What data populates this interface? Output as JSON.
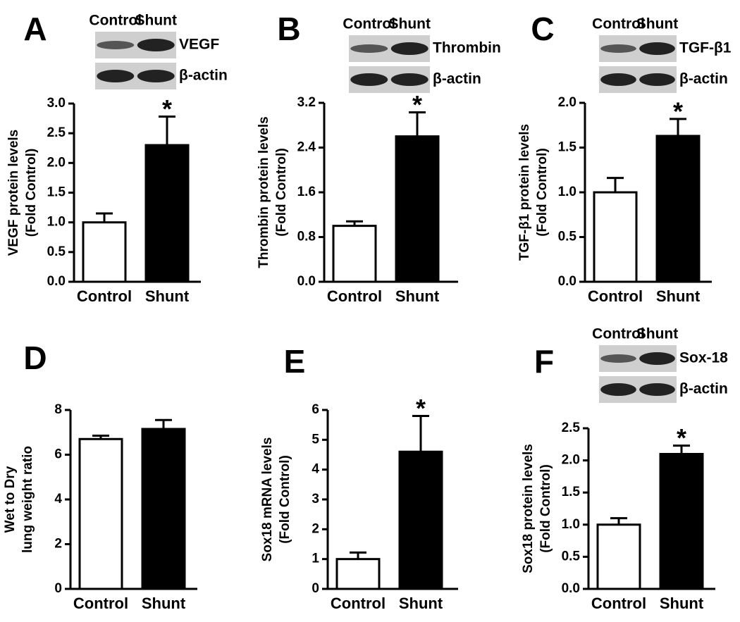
{
  "chart_data": [
    {
      "type": "bar",
      "letter": "A",
      "ylabel": [
        "VEGF protein levels",
        "(Fold Control)"
      ],
      "categories": [
        "Control",
        "Shunt"
      ],
      "values": [
        1.0,
        2.3
      ],
      "errors": [
        0.15,
        0.48
      ],
      "colors": [
        "#ffffff",
        "#000000"
      ],
      "ylim": [
        0,
        3
      ],
      "yticks": [
        {
          "value": 0,
          "label": "0.0"
        },
        0.5,
        {
          "value": 1,
          "label": "1.0"
        },
        1.5,
        {
          "value": 2,
          "label": "2.0"
        },
        2.5,
        {
          "value": 3,
          "label": "3.0"
        }
      ],
      "annotation": "*",
      "blot": {
        "lanes": [
          "Control",
          "Shunt"
        ],
        "rows": [
          "VEGF",
          "β-actin"
        ]
      }
    },
    {
      "type": "bar",
      "letter": "B",
      "ylabel": [
        "Thrombin protein levels",
        "(Fold Control)"
      ],
      "categories": [
        "Control",
        "Shunt"
      ],
      "values": [
        1.0,
        2.6
      ],
      "errors": [
        0.08,
        0.43
      ],
      "colors": [
        "#ffffff",
        "#000000"
      ],
      "ylim": [
        0,
        3.2
      ],
      "yticks": [
        {
          "value": 0,
          "label": "0.0"
        },
        0.8,
        1.6,
        2.4,
        3.2
      ],
      "annotation": "*",
      "blot": {
        "lanes": [
          "Control",
          "Shunt"
        ],
        "rows": [
          "Thrombin",
          "β-actin"
        ]
      }
    },
    {
      "type": "bar",
      "letter": "C",
      "ylabel": [
        "TGF-β1 protein levels",
        "(Fold Control)"
      ],
      "categories": [
        "Control",
        "Shunt"
      ],
      "values": [
        1.0,
        1.63
      ],
      "errors": [
        0.16,
        0.19
      ],
      "colors": [
        "#ffffff",
        "#000000"
      ],
      "ylim": [
        0,
        2
      ],
      "yticks": [
        {
          "value": 0,
          "label": "0.0"
        },
        0.5,
        {
          "value": 1,
          "label": "1.0"
        },
        1.5,
        {
          "value": 2,
          "label": "2.0"
        }
      ],
      "annotation": "*",
      "blot": {
        "lanes": [
          "Control",
          "Shunt"
        ],
        "rows": [
          "TGF-β1",
          "β-actin"
        ]
      }
    },
    {
      "type": "bar",
      "letter": "D",
      "ylabel": [
        "Wet to Dry",
        "lung weight ratio"
      ],
      "categories": [
        "Control",
        "Shunt"
      ],
      "values": [
        6.7,
        7.15
      ],
      "errors": [
        0.15,
        0.4
      ],
      "colors": [
        "#ffffff",
        "#000000"
      ],
      "ylim": [
        0,
        8
      ],
      "yticks": [
        0,
        2,
        4,
        6,
        8
      ]
    },
    {
      "type": "bar",
      "letter": "E",
      "ylabel": [
        "Sox18 mRNA levels",
        "(Fold Control)"
      ],
      "categories": [
        "Control",
        "Shunt"
      ],
      "values": [
        1.0,
        4.6
      ],
      "errors": [
        0.22,
        1.2
      ],
      "colors": [
        "#ffffff",
        "#000000"
      ],
      "ylim": [
        0,
        6
      ],
      "yticks": [
        0,
        1,
        2,
        3,
        4,
        5,
        6
      ],
      "annotation": "*"
    },
    {
      "type": "bar",
      "letter": "F",
      "ylabel": [
        "Sox18 protein levels",
        "(Fold Control)"
      ],
      "categories": [
        "Control",
        "Shunt"
      ],
      "values": [
        1.0,
        2.1
      ],
      "errors": [
        0.1,
        0.13
      ],
      "colors": [
        "#ffffff",
        "#000000"
      ],
      "ylim": [
        0,
        2.5
      ],
      "yticks": [
        {
          "value": 0,
          "label": "0.0"
        },
        0.5,
        {
          "value": 1,
          "label": "1.0"
        },
        1.5,
        {
          "value": 2,
          "label": "2.0"
        },
        2.5
      ],
      "annotation": "*",
      "blot": {
        "lanes": [
          "Control",
          "Shunt"
        ],
        "rows": [
          "Sox-18",
          "β-actin"
        ]
      }
    }
  ]
}
